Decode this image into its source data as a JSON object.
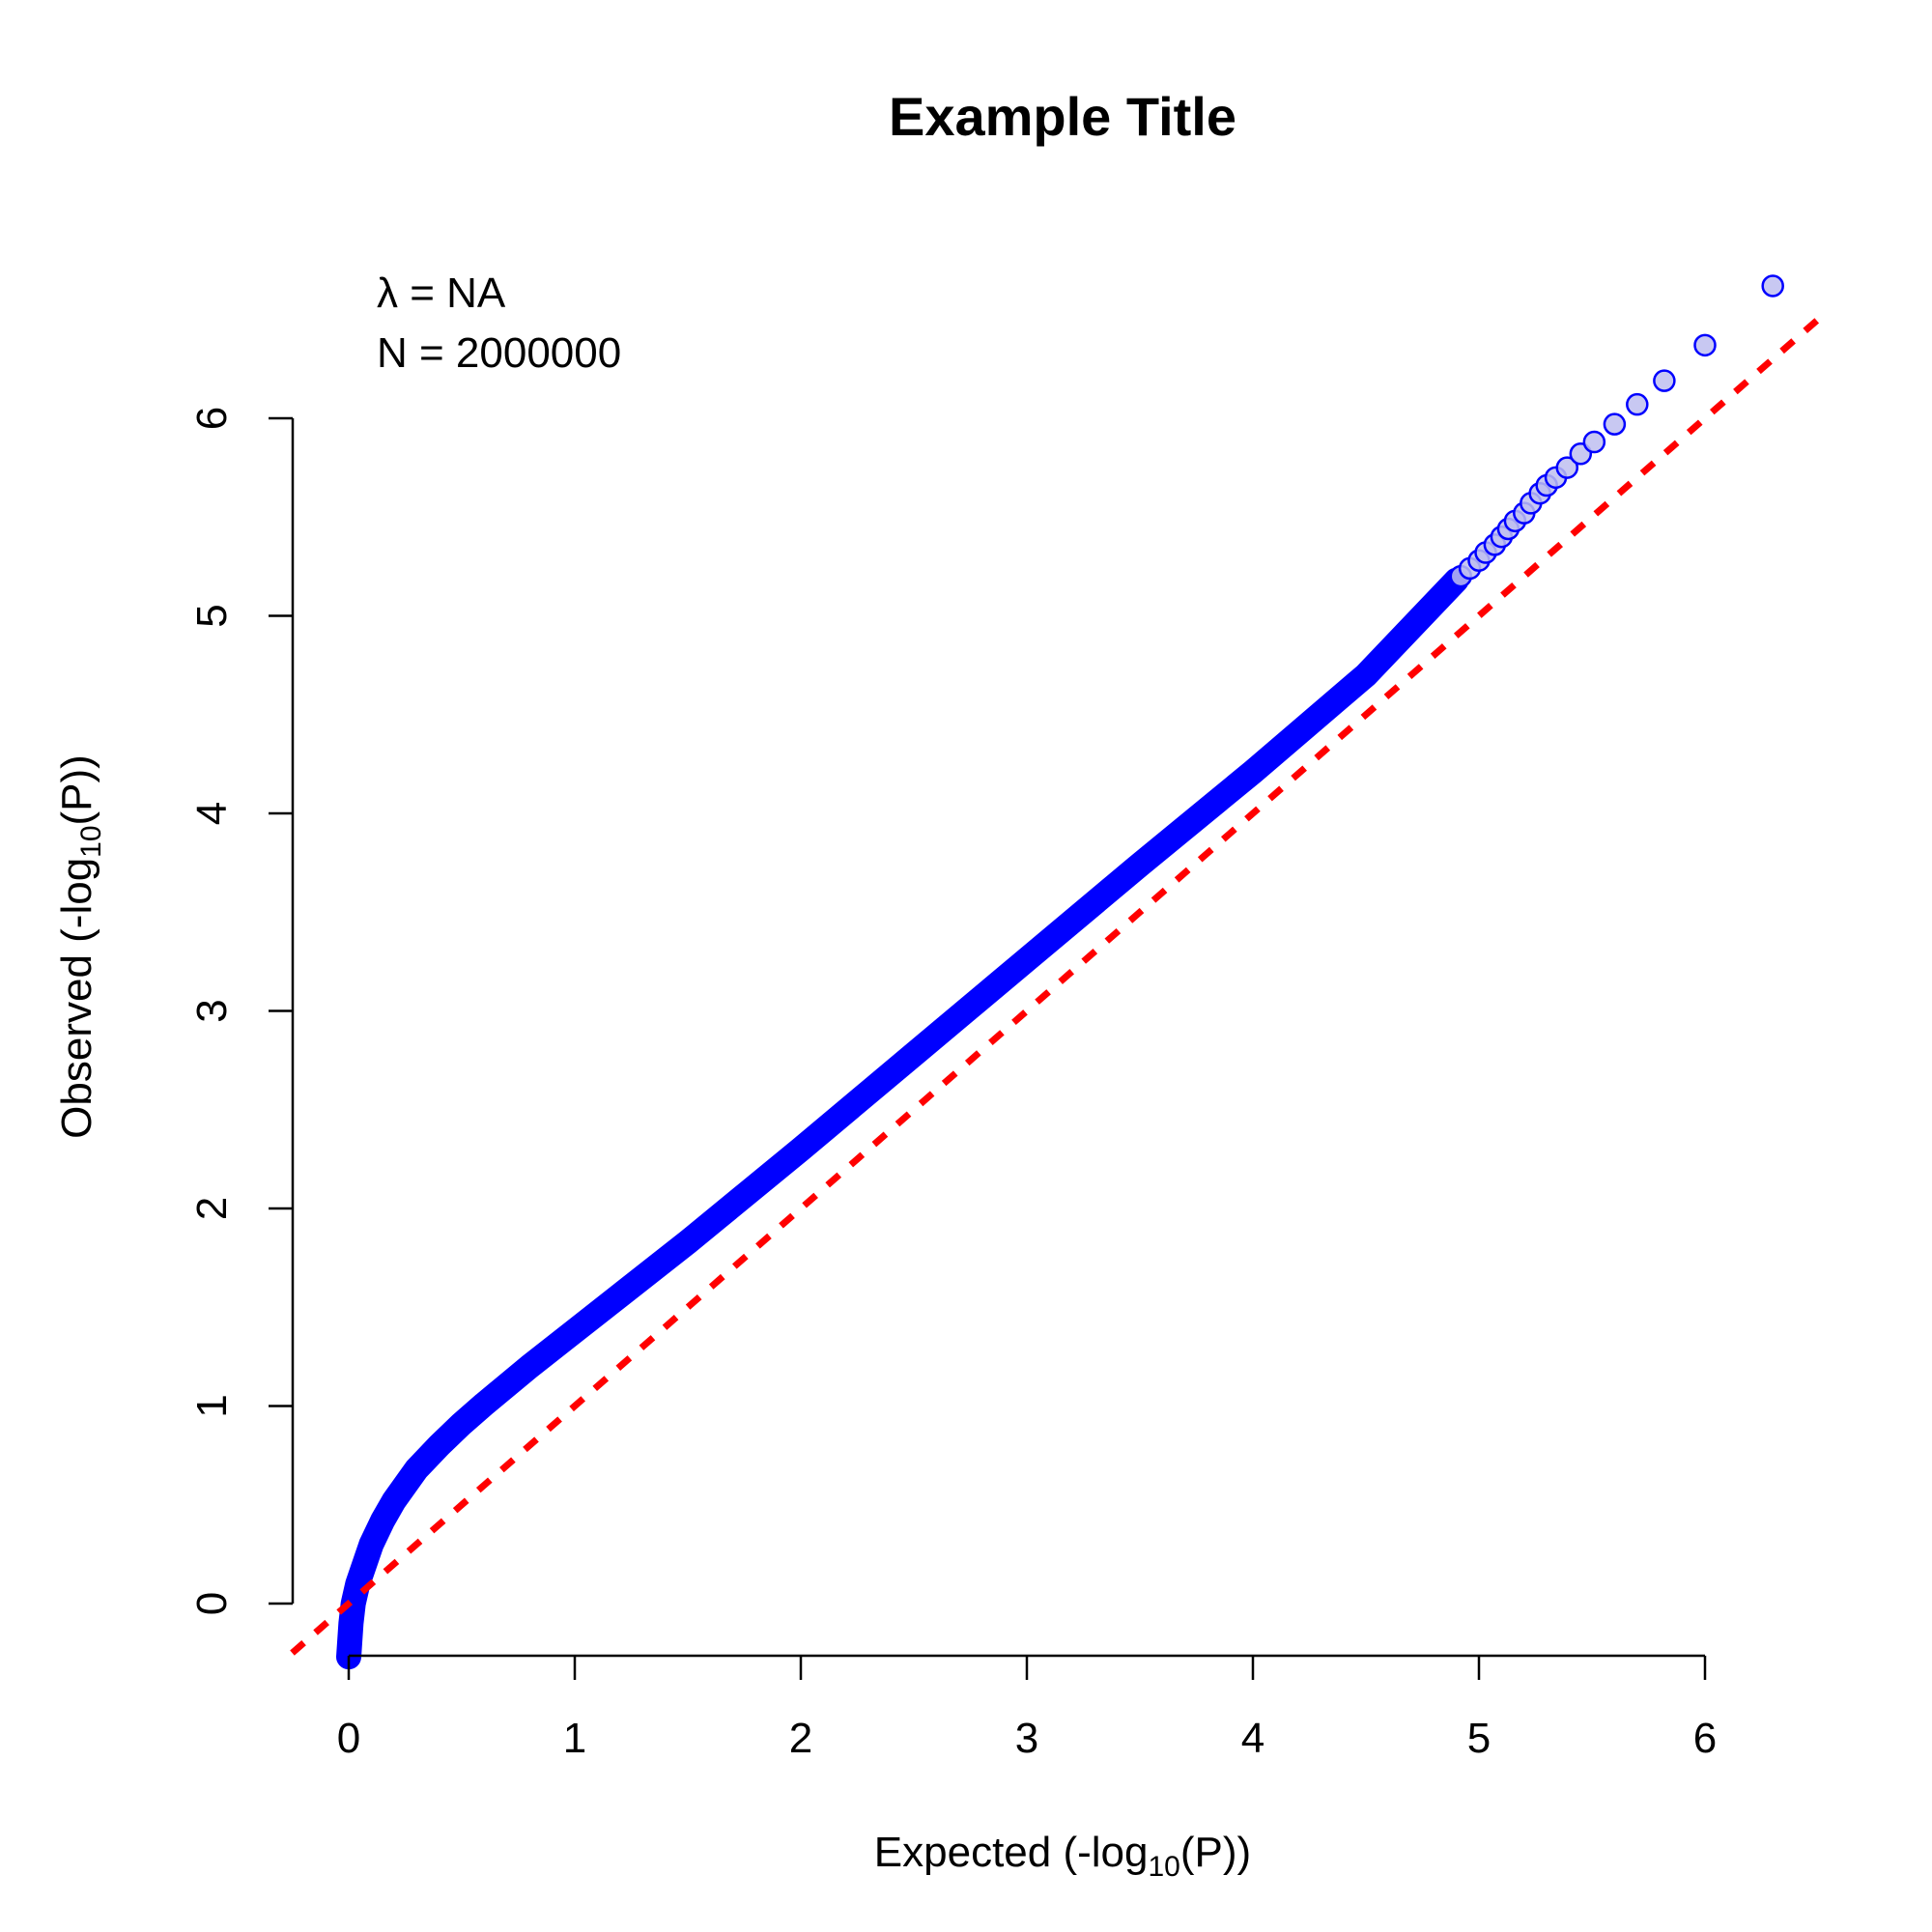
{
  "chart_data": {
    "type": "scatter",
    "title": "Example Title",
    "xlabel": {
      "prefix": "Expected (-log",
      "sub": "10",
      "suffix": "(P))"
    },
    "ylabel": {
      "prefix": "Observed (-log",
      "sub": "10",
      "suffix": "(P))"
    },
    "annotations": [
      "λ = NA",
      "N = 2000000"
    ],
    "x_ticks": [
      "0",
      "1",
      "2",
      "3",
      "4",
      "5",
      "6"
    ],
    "y_ticks": [
      "0",
      "1",
      "2",
      "3",
      "4",
      "5",
      "6"
    ],
    "xlim": [
      -0.25,
      6.5
    ],
    "ylim": [
      -0.27,
      6.5
    ],
    "grid": false,
    "series": [
      {
        "style": "dense-band",
        "color": "#0000ff",
        "points": [
          [
            0.0,
            -0.27
          ],
          [
            0.01,
            -0.1
          ],
          [
            0.02,
            0.0
          ],
          [
            0.04,
            0.1
          ],
          [
            0.07,
            0.2
          ],
          [
            0.1,
            0.3
          ],
          [
            0.15,
            0.42
          ],
          [
            0.2,
            0.52
          ],
          [
            0.3,
            0.68
          ],
          [
            0.4,
            0.8
          ],
          [
            0.5,
            0.91
          ],
          [
            0.6,
            1.01
          ],
          [
            0.8,
            1.2
          ],
          [
            1.0,
            1.38
          ],
          [
            1.2,
            1.56
          ],
          [
            1.5,
            1.83
          ],
          [
            2.0,
            2.3
          ],
          [
            2.5,
            2.78
          ],
          [
            3.0,
            3.26
          ],
          [
            3.5,
            3.74
          ],
          [
            4.0,
            4.21
          ],
          [
            4.5,
            4.7
          ],
          [
            4.9,
            5.18
          ]
        ]
      },
      {
        "style": "open-circles",
        "color": "#0000ff",
        "points": [
          [
            4.92,
            5.2
          ],
          [
            4.96,
            5.24
          ],
          [
            5.0,
            5.28
          ],
          [
            5.03,
            5.32
          ],
          [
            5.07,
            5.36
          ],
          [
            5.1,
            5.4
          ],
          [
            5.13,
            5.44
          ],
          [
            5.16,
            5.48
          ],
          [
            5.2,
            5.52
          ],
          [
            5.23,
            5.57
          ],
          [
            5.27,
            5.62
          ],
          [
            5.3,
            5.66
          ],
          [
            5.34,
            5.7
          ],
          [
            5.39,
            5.75
          ],
          [
            5.45,
            5.82
          ],
          [
            5.51,
            5.88
          ],
          [
            5.6,
            5.97
          ],
          [
            5.7,
            6.07
          ],
          [
            5.82,
            6.19
          ],
          [
            6.0,
            6.37
          ],
          [
            6.3,
            6.67
          ]
        ]
      }
    ],
    "reference_line": {
      "slope": 1,
      "intercept": 0,
      "color": "#ff0000",
      "style": "dashed"
    }
  }
}
